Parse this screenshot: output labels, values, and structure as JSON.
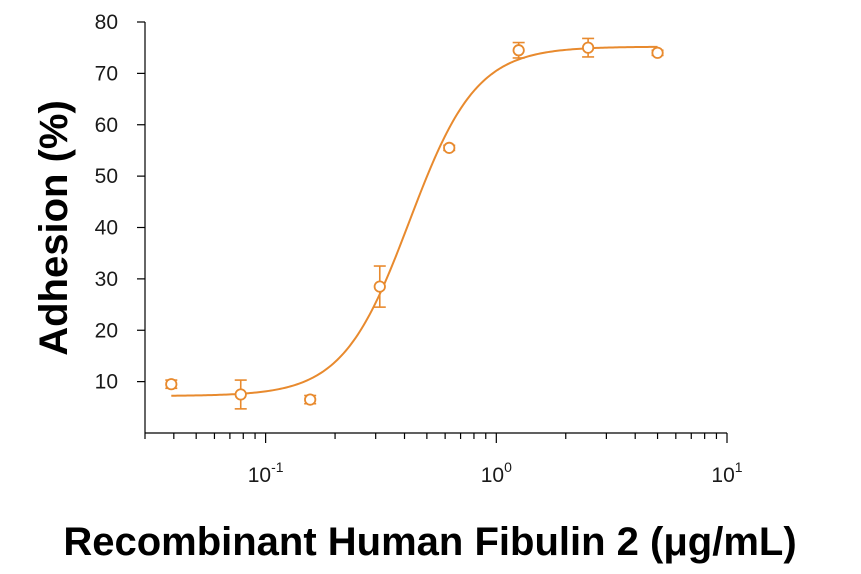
{
  "chart_data": {
    "type": "scatter",
    "title": "",
    "xlabel": "Recombinant Human Fibulin 2 (μg/mL)",
    "ylabel": "Adhesion (%)",
    "x_scale": "log",
    "xlim": [
      0.03,
      10
    ],
    "ylim": [
      0,
      80
    ],
    "y_ticks": [
      10,
      20,
      30,
      40,
      50,
      60,
      70,
      80
    ],
    "x_ticks": [
      {
        "value": 0.1,
        "base": "10",
        "exp": "-1"
      },
      {
        "value": 1,
        "base": "10",
        "exp": "0"
      },
      {
        "value": 10,
        "base": "10",
        "exp": "1"
      }
    ],
    "grid": false,
    "legend": "none",
    "series": [
      {
        "color": "#E88A2E",
        "points": [
          {
            "x": 0.039,
            "y": 9.5,
            "err": 0.8
          },
          {
            "x": 0.078,
            "y": 7.5,
            "err": 2.8
          },
          {
            "x": 0.156,
            "y": 6.5,
            "err": 0.8
          },
          {
            "x": 0.3125,
            "y": 28.5,
            "err": 4.0
          },
          {
            "x": 0.625,
            "y": 55.5,
            "err": 0.5
          },
          {
            "x": 1.25,
            "y": 74.5,
            "err": 1.5
          },
          {
            "x": 2.5,
            "y": 75.0,
            "err": 1.8
          },
          {
            "x": 5.0,
            "y": 74.0,
            "err": 0.5
          }
        ],
        "fit": {
          "model": "4PL",
          "bottom": 7.2,
          "top": 75.2,
          "ec50": 0.42,
          "hill": 3.0,
          "x_range": [
            0.039,
            5.0
          ]
        }
      }
    ]
  }
}
